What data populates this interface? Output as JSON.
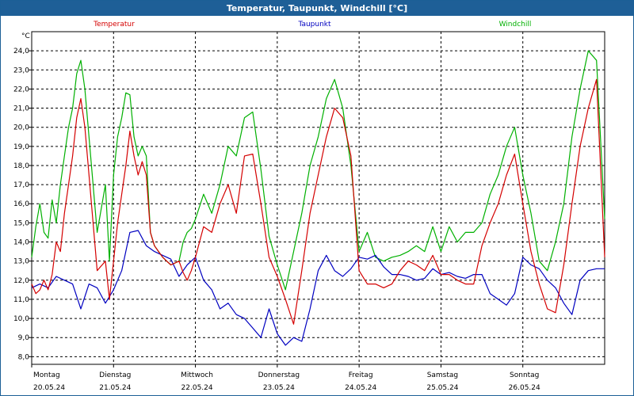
{
  "window": {
    "title": "Temperatur, Taupunkt, Windchill [°C]"
  },
  "colors": {
    "temperatur": "#d40000",
    "taupunkt": "#0000c0",
    "windchill": "#00b000",
    "titlebar": "#1e5f97"
  },
  "chart_data": {
    "type": "line",
    "title": "Temperatur, Taupunkt, Windchill [°C]",
    "ylabel": "°C",
    "ylim": [
      7.6,
      25
    ],
    "yticks": [
      "8,0",
      "9,0",
      "10,0",
      "11,0",
      "12,0",
      "13,0",
      "14,0",
      "15,0",
      "16,0",
      "17,0",
      "18,0",
      "19,0",
      "20,0",
      "21,0",
      "22,0",
      "23,0",
      "24,0"
    ],
    "xlim": [
      0,
      7
    ],
    "day_labels": [
      {
        "weekday": "Montag",
        "date": "20.05.24"
      },
      {
        "weekday": "Dienstag",
        "date": "21.05.24"
      },
      {
        "weekday": "Mittwoch",
        "date": "22.05.24"
      },
      {
        "weekday": "Donnerstag",
        "date": "23.05.24"
      },
      {
        "weekday": "Freitag",
        "date": "24.05.24"
      },
      {
        "weekday": "Samstag",
        "date": "25.05.24"
      },
      {
        "weekday": "Sonntag",
        "date": "26.05.24"
      }
    ],
    "grid": true,
    "legend_position": "top",
    "series": [
      {
        "name": "Temperatur",
        "color": "#d40000",
        "x": [
          0,
          0.05,
          0.1,
          0.15,
          0.2,
          0.25,
          0.3,
          0.35,
          0.4,
          0.45,
          0.5,
          0.55,
          0.6,
          0.65,
          0.7,
          0.8,
          0.9,
          0.95,
          1.0,
          1.05,
          1.1,
          1.15,
          1.2,
          1.25,
          1.3,
          1.35,
          1.4,
          1.45,
          1.5,
          1.55,
          1.6,
          1.65,
          1.7,
          1.75,
          1.8,
          1.85,
          1.9,
          1.95,
          2.0,
          2.1,
          2.2,
          2.3,
          2.4,
          2.5,
          2.6,
          2.7,
          2.8,
          2.9,
          3.0,
          3.1,
          3.2,
          3.3,
          3.4,
          3.5,
          3.6,
          3.7,
          3.8,
          3.9,
          4.0,
          4.1,
          4.2,
          4.3,
          4.4,
          4.5,
          4.6,
          4.7,
          4.8,
          4.9,
          5.0,
          5.1,
          5.2,
          5.3,
          5.4,
          5.5,
          5.6,
          5.7,
          5.8,
          5.9,
          6.0,
          6.1,
          6.2,
          6.3,
          6.4,
          6.5,
          6.6,
          6.7,
          6.8,
          6.9,
          7.0
        ],
        "y": [
          11.8,
          11.3,
          11.5,
          12.0,
          11.5,
          12.3,
          14.0,
          13.5,
          15.5,
          17.0,
          18.5,
          20.5,
          21.5,
          20.0,
          17.5,
          12.5,
          13.0,
          11.0,
          13.0,
          15.0,
          16.5,
          18.0,
          19.8,
          18.5,
          17.5,
          18.2,
          17.5,
          14.5,
          13.8,
          13.5,
          13.2,
          13.0,
          12.8,
          12.9,
          13.0,
          12.4,
          12.0,
          12.5,
          13.2,
          14.8,
          14.5,
          16.0,
          17.0,
          15.5,
          18.5,
          18.6,
          16.0,
          13.2,
          12.2,
          11.0,
          9.7,
          12.5,
          15.5,
          17.5,
          19.5,
          21.0,
          20.5,
          18.5,
          12.5,
          11.8,
          11.8,
          11.6,
          11.8,
          12.5,
          13.0,
          12.8,
          12.5,
          13.3,
          12.3,
          12.3,
          12.0,
          11.8,
          11.8,
          13.8,
          15.0,
          16.0,
          17.5,
          18.6,
          16.0,
          13.5,
          11.8,
          10.5,
          10.3,
          12.8,
          16.0,
          19.0,
          21.0,
          22.5,
          13.2
        ]
      },
      {
        "name": "Taupunkt",
        "color": "#0000c0",
        "x": [
          0,
          0.1,
          0.2,
          0.3,
          0.4,
          0.5,
          0.6,
          0.7,
          0.8,
          0.9,
          1.0,
          1.05,
          1.1,
          1.2,
          1.3,
          1.4,
          1.5,
          1.6,
          1.7,
          1.8,
          1.9,
          2.0,
          2.1,
          2.2,
          2.3,
          2.4,
          2.5,
          2.6,
          2.7,
          2.8,
          2.9,
          3.0,
          3.1,
          3.2,
          3.3,
          3.4,
          3.5,
          3.6,
          3.7,
          3.8,
          3.9,
          4.0,
          4.1,
          4.2,
          4.3,
          4.4,
          4.5,
          4.6,
          4.7,
          4.8,
          4.9,
          5.0,
          5.1,
          5.2,
          5.3,
          5.4,
          5.5,
          5.6,
          5.7,
          5.8,
          5.9,
          6.0,
          6.1,
          6.2,
          6.3,
          6.4,
          6.5,
          6.6,
          6.7,
          6.8,
          6.9,
          7.0
        ],
        "y": [
          11.6,
          11.8,
          11.6,
          12.2,
          12.0,
          11.8,
          10.5,
          11.8,
          11.6,
          10.8,
          11.5,
          12.0,
          12.5,
          14.5,
          14.6,
          13.8,
          13.5,
          13.3,
          13.1,
          12.2,
          12.8,
          13.2,
          12.0,
          11.5,
          10.5,
          10.8,
          10.2,
          10.0,
          9.5,
          9.0,
          10.5,
          9.2,
          8.6,
          9.0,
          8.8,
          10.5,
          12.5,
          13.3,
          12.5,
          12.2,
          12.6,
          13.2,
          13.1,
          13.3,
          12.7,
          12.3,
          12.3,
          12.2,
          12.0,
          12.1,
          12.6,
          12.3,
          12.4,
          12.2,
          12.1,
          12.3,
          12.3,
          11.3,
          11.0,
          10.7,
          11.3,
          13.2,
          12.8,
          12.6,
          12.0,
          11.6,
          10.8,
          10.2,
          12.0,
          12.5,
          12.6,
          12.6
        ]
      },
      {
        "name": "Windchill",
        "color": "#00b000",
        "x": [
          0,
          0.05,
          0.1,
          0.15,
          0.2,
          0.25,
          0.3,
          0.35,
          0.4,
          0.45,
          0.5,
          0.55,
          0.6,
          0.65,
          0.7,
          0.8,
          0.9,
          0.95,
          1.0,
          1.05,
          1.1,
          1.15,
          1.2,
          1.25,
          1.3,
          1.35,
          1.4,
          1.45,
          1.5,
          1.55,
          1.6,
          1.65,
          1.7,
          1.75,
          1.8,
          1.85,
          1.9,
          1.95,
          2.0,
          2.1,
          2.2,
          2.3,
          2.4,
          2.5,
          2.6,
          2.7,
          2.8,
          2.9,
          3.0,
          3.1,
          3.2,
          3.3,
          3.4,
          3.5,
          3.6,
          3.7,
          3.8,
          3.9,
          4.0,
          4.1,
          4.2,
          4.3,
          4.4,
          4.5,
          4.6,
          4.7,
          4.8,
          4.9,
          5.0,
          5.1,
          5.2,
          5.3,
          5.4,
          5.5,
          5.6,
          5.7,
          5.8,
          5.9,
          6.0,
          6.1,
          6.2,
          6.3,
          6.4,
          6.5,
          6.6,
          6.7,
          6.8,
          6.9,
          7.0
        ],
        "y": [
          13.2,
          14.8,
          16.0,
          14.5,
          14.2,
          16.2,
          15.0,
          17.0,
          18.5,
          20.0,
          21.0,
          22.8,
          23.5,
          22.0,
          19.5,
          14.5,
          17.0,
          13.0,
          17.5,
          19.5,
          20.5,
          21.8,
          21.7,
          19.5,
          18.5,
          19.0,
          18.5,
          14.5,
          13.8,
          13.5,
          13.2,
          13.0,
          12.8,
          12.9,
          13.0,
          14.0,
          14.5,
          14.7,
          15.2,
          16.5,
          15.5,
          17.0,
          19.0,
          18.5,
          20.5,
          20.8,
          17.8,
          14.3,
          12.8,
          11.5,
          13.5,
          15.5,
          18.0,
          19.5,
          21.5,
          22.5,
          21.0,
          18.0,
          13.5,
          14.5,
          13.2,
          13.0,
          13.2,
          13.3,
          13.5,
          13.8,
          13.5,
          14.8,
          13.5,
          14.8,
          14.0,
          14.5,
          14.5,
          15.0,
          16.5,
          17.5,
          19.0,
          20.0,
          17.5,
          15.5,
          13.0,
          12.5,
          14.0,
          16.0,
          19.5,
          22.0,
          24.0,
          23.5,
          15.2
        ]
      }
    ]
  }
}
